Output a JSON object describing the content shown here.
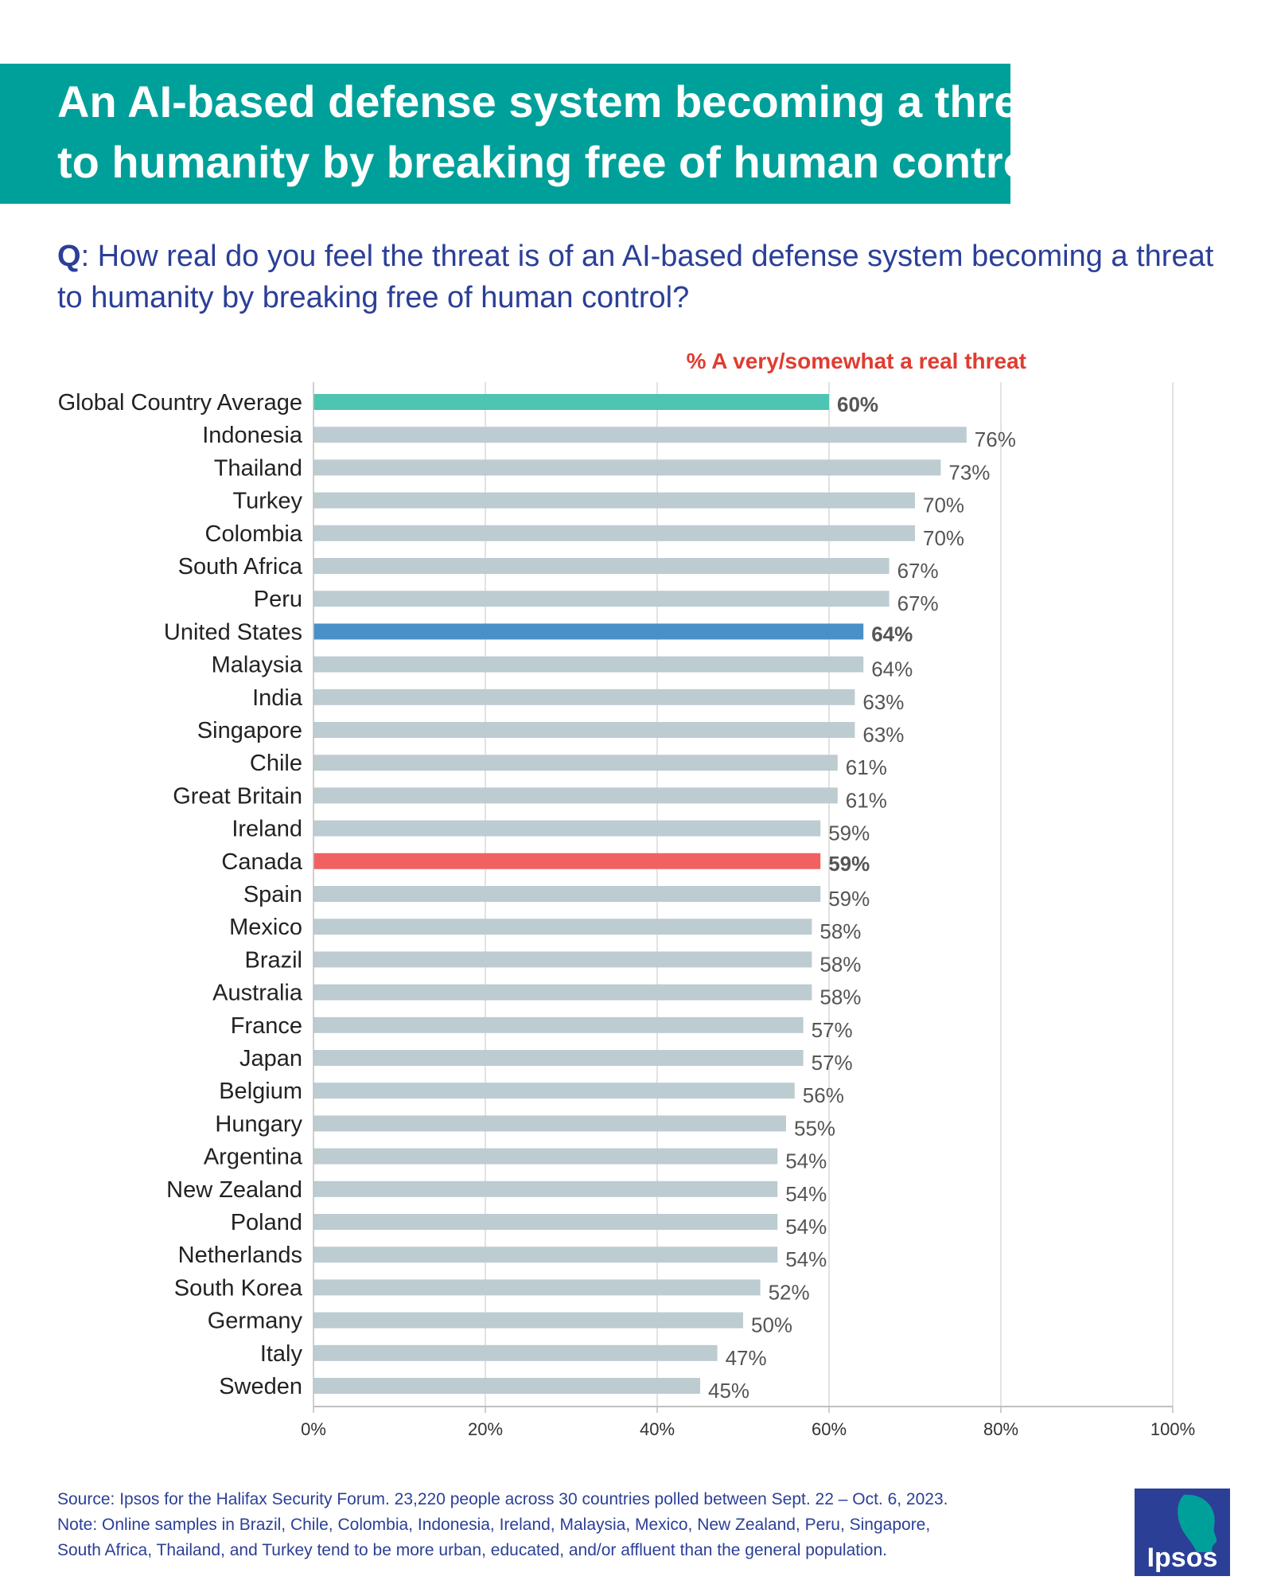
{
  "title": {
    "line1": "An AI-based defense system becoming a threat",
    "line2": "to humanity by breaking free of human control"
  },
  "question": {
    "prefix": "Q",
    "text": ": How real do you feel the threat is of an AI-based defense system becoming a threat to humanity by breaking free of human control?"
  },
  "colors": {
    "banner": "#00A09A",
    "question": "#2B3F97",
    "bar_default": "#BCCCD1",
    "bar_global": "#4EC4B2",
    "bar_us": "#4A90C8",
    "bar_canada": "#F26161",
    "label_global": "#009B8A",
    "label_us": "#1F5EA8",
    "label_canada": "#C82A1E"
  },
  "chart_data": {
    "type": "bar",
    "orientation": "horizontal",
    "series_label": "% A very/somewhat a real threat",
    "categories": [
      "Global Country Average",
      "Indonesia",
      "Thailand",
      "Turkey",
      "Colombia",
      "South Africa",
      "Peru",
      "United States",
      "Malaysia",
      "India",
      "Singapore",
      "Chile",
      "Great Britain",
      "Ireland",
      "Canada",
      "Spain",
      "Mexico",
      "Brazil",
      "Australia",
      "France",
      "Japan",
      "Belgium",
      "Hungary",
      "Argentina",
      "New Zealand",
      "Poland",
      "Netherlands",
      "South Korea",
      "Germany",
      "Italy",
      "Sweden"
    ],
    "values": [
      60,
      76,
      73,
      70,
      70,
      67,
      67,
      64,
      64,
      63,
      63,
      61,
      61,
      59,
      59,
      59,
      58,
      58,
      58,
      57,
      57,
      56,
      55,
      54,
      54,
      54,
      54,
      52,
      50,
      47,
      45
    ],
    "value_labels": [
      "60%",
      "76%",
      "73%",
      "70%",
      "70%",
      "67%",
      "67%",
      "64%",
      "64%",
      "63%",
      "63%",
      "61%",
      "61%",
      "59%",
      "59%",
      "59%",
      "58%",
      "58%",
      "58%",
      "57%",
      "57%",
      "56%",
      "55%",
      "54%",
      "54%",
      "54%",
      "54%",
      "52%",
      "50%",
      "47%",
      "45%"
    ],
    "highlights": {
      "Global Country Average": "global",
      "United States": "us",
      "Canada": "canada"
    },
    "xlim": [
      0,
      100
    ],
    "xticks": [
      0,
      20,
      40,
      60,
      80,
      100
    ],
    "xtick_labels": [
      "0%",
      "20%",
      "40%",
      "60%",
      "80%",
      "100%"
    ],
    "grid": true
  },
  "footnotes": {
    "source": "Source: Ipsos for the Halifax Security Forum. 23,220 people across 30 countries polled between Sept. 22 – Oct. 6, 2023.",
    "note_line1": "Note: Online samples in Brazil, Chile, Colombia, Indonesia, Ireland, Malaysia, Mexico, New Zealand, Peru, Singapore,",
    "note_line2": "South Africa, Thailand, and Turkey tend to be more urban, educated, and/or affluent than the general population."
  },
  "logo": {
    "text": "Ipsos",
    "icon": "ipsos-head-logo"
  }
}
